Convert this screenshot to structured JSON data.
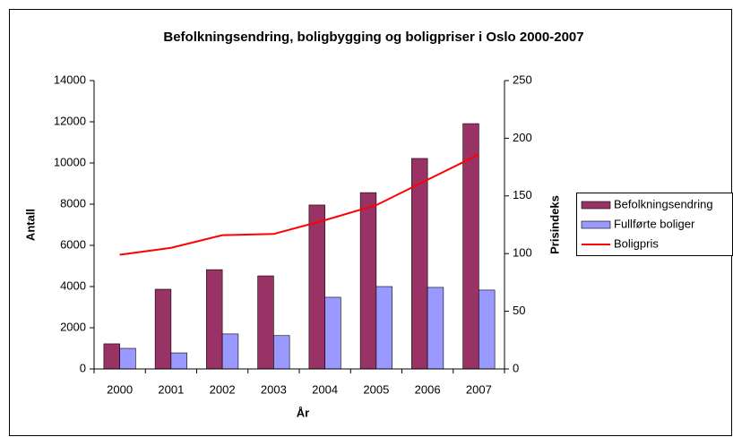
{
  "chart_data": {
    "type": "bar",
    "title": "Befolkningsendring, boligbygging og boligpriser i Oslo 2000-2007",
    "x_label": "År",
    "y_label": "Antall",
    "y2_label": "Prisindeks",
    "categories": [
      "2000",
      "2001",
      "2002",
      "2003",
      "2004",
      "2005",
      "2006",
      "2007"
    ],
    "series": [
      {
        "name": "Befolkningsendring",
        "color": "#993366",
        "type": "bar",
        "values": [
          1220,
          3870,
          4820,
          4520,
          7960,
          8560,
          10220,
          11910
        ]
      },
      {
        "name": "Fullførte boliger",
        "color": "#9999ff",
        "type": "bar",
        "values": [
          1000,
          780,
          1700,
          1620,
          3480,
          4000,
          3960,
          3830
        ]
      },
      {
        "name": "Boligpris",
        "color": "#ff0000",
        "type": "line",
        "axis": "y2",
        "values": [
          99,
          105,
          116,
          117,
          129,
          142,
          164,
          186
        ]
      }
    ],
    "ylim": [
      0,
      14000
    ],
    "yticks": [
      0,
      2000,
      4000,
      6000,
      8000,
      10000,
      12000,
      14000
    ],
    "y2lim": [
      0,
      250
    ],
    "y2ticks": [
      0,
      50,
      100,
      150,
      200,
      250
    ],
    "legend": "right",
    "grid": false
  }
}
